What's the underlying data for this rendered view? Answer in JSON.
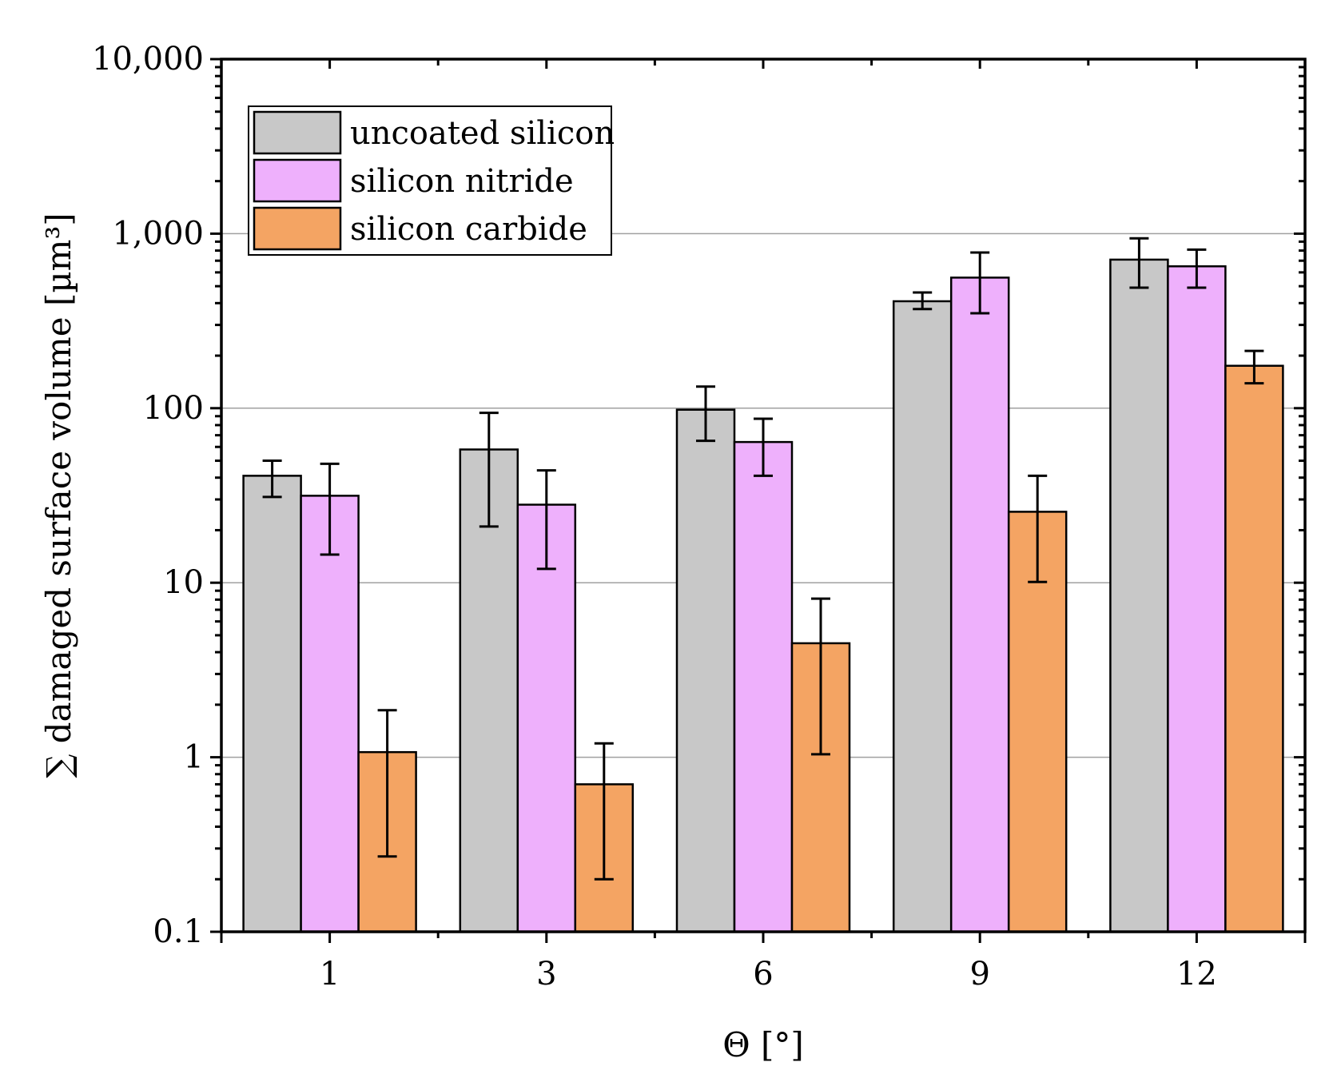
{
  "chart_data": {
    "type": "bar",
    "title": "",
    "xlabel": "Θ [°]",
    "ylabel": "∑ damaged surface volume [µm³]",
    "yscale": "log",
    "ylim": [
      0.1,
      10000
    ],
    "yticks": [
      {
        "value": 0.1,
        "label": "0.1"
      },
      {
        "value": 1,
        "label": "1"
      },
      {
        "value": 10,
        "label": "10"
      },
      {
        "value": 100,
        "label": "100"
      },
      {
        "value": 1000,
        "label": "1,000"
      },
      {
        "value": 10000,
        "label": "10,000"
      }
    ],
    "grid": "horizontal major lines",
    "legend_position": "top-left",
    "categories": [
      "1",
      "3",
      "6",
      "9",
      "12"
    ],
    "series": [
      {
        "name": "uncoated silicon",
        "color": "#c8c8c8",
        "values": [
          41,
          58,
          98,
          410,
          710
        ],
        "err_low": [
          31,
          21,
          65,
          370,
          490
        ],
        "err_high": [
          50,
          94,
          133,
          460,
          940
        ]
      },
      {
        "name": "silicon nitride",
        "color": "#eeb0fc",
        "values": [
          31.5,
          28,
          64,
          560,
          650
        ],
        "err_low": [
          14.5,
          12,
          41,
          350,
          490
        ],
        "err_high": [
          48,
          44,
          87,
          780,
          810
        ]
      },
      {
        "name": "silicon carbide",
        "color": "#f4a463",
        "values": [
          1.07,
          0.7,
          4.5,
          25.5,
          175
        ],
        "err_low": [
          0.27,
          0.2,
          1.04,
          10.1,
          139
        ],
        "err_high": [
          1.86,
          1.2,
          8.1,
          41,
          213
        ]
      }
    ]
  }
}
